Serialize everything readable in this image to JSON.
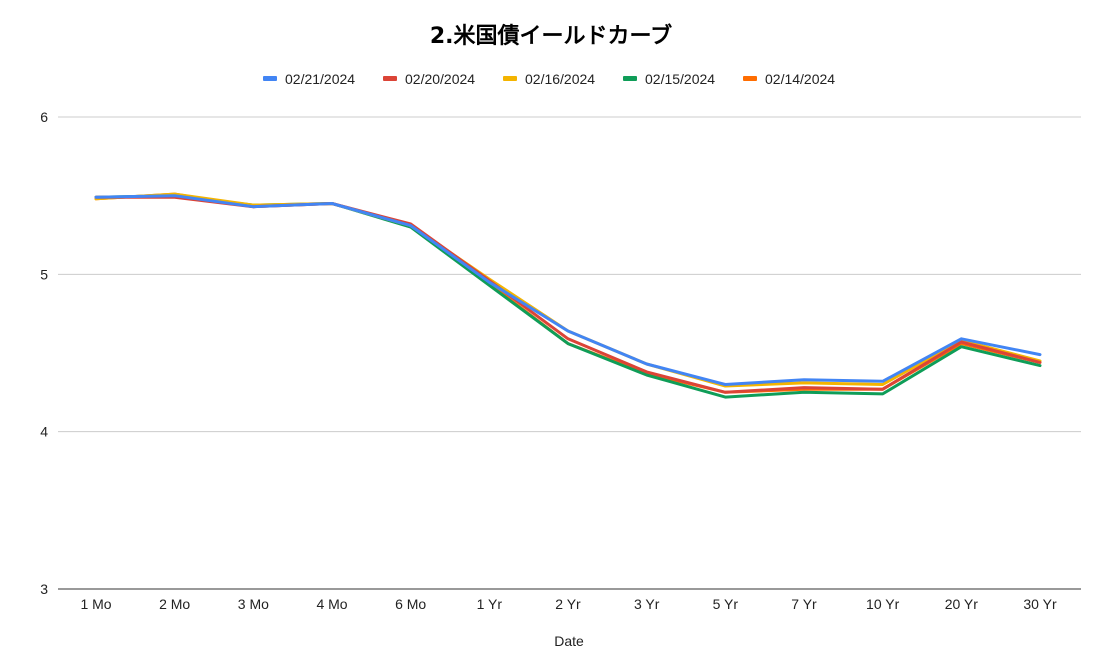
{
  "chart_data": {
    "type": "line",
    "title": "2.米国債イールドカーブ",
    "xlabel": "Date",
    "ylabel": "",
    "categories": [
      "1 Mo",
      "2 Mo",
      "3 Mo",
      "4 Mo",
      "6 Mo",
      "1 Yr",
      "2 Yr",
      "3 Yr",
      "5 Yr",
      "7 Yr",
      "10 Yr",
      "20 Yr",
      "30 Yr"
    ],
    "ylim": [
      3,
      6
    ],
    "yticks": [
      "3",
      "4",
      "5",
      "6"
    ],
    "grid": true,
    "legend_position": "top",
    "series": [
      {
        "name": "02/21/2024",
        "color": "#4285F4",
        "values": [
          5.49,
          5.5,
          5.43,
          5.45,
          5.31,
          4.95,
          4.64,
          4.43,
          4.3,
          4.33,
          4.32,
          4.59,
          4.49
        ]
      },
      {
        "name": "02/20/2024",
        "color": "#DB4437",
        "values": [
          5.49,
          5.49,
          5.43,
          5.45,
          5.32,
          4.96,
          4.59,
          4.38,
          4.25,
          4.28,
          4.27,
          4.57,
          4.44
        ]
      },
      {
        "name": "02/16/2024",
        "color": "#F4B400",
        "values": [
          5.48,
          5.51,
          5.44,
          5.45,
          5.31,
          4.97,
          4.64,
          4.43,
          4.29,
          4.31,
          4.3,
          4.58,
          4.45
        ]
      },
      {
        "name": "02/15/2024",
        "color": "#0F9D58",
        "values": [
          5.49,
          5.5,
          5.44,
          5.45,
          5.3,
          4.93,
          4.56,
          4.36,
          4.22,
          4.25,
          4.24,
          4.54,
          4.42
        ]
      },
      {
        "name": "02/14/2024",
        "color": "#FF6D01",
        "values": [
          5.48,
          5.51,
          5.43,
          5.45,
          5.31,
          4.94,
          4.56,
          4.37,
          4.25,
          4.27,
          4.27,
          4.56,
          4.44
        ]
      }
    ]
  }
}
